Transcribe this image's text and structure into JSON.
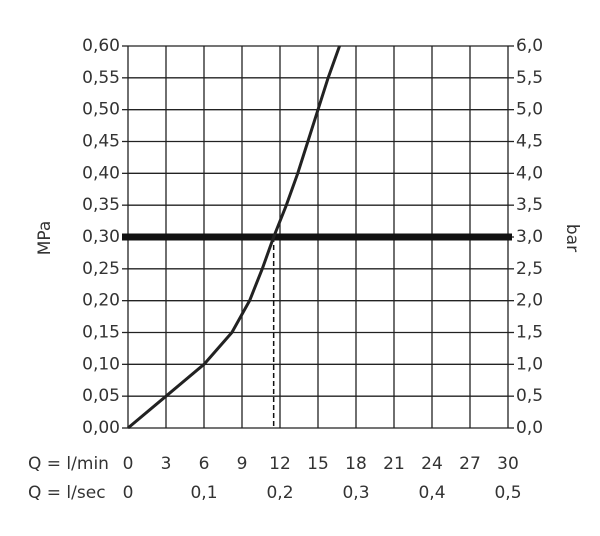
{
  "chart_data": {
    "type": "line",
    "ylabel": "MPa",
    "y2label": "bar",
    "xlabel": "Q = l/min",
    "x2label": "Q = l/sec",
    "x": [
      0,
      3,
      6,
      8.2,
      9.6,
      10.6,
      11.5,
      12.5,
      13.4,
      14.2,
      15.0,
      15.8,
      16.7
    ],
    "values": [
      0,
      0.05,
      0.1,
      0.15,
      0.2,
      0.25,
      0.3,
      0.35,
      0.4,
      0.45,
      0.5,
      0.55,
      0.6
    ],
    "color": "#222222",
    "reference_y": 0.3,
    "reference_x": 11.5,
    "xlim": [
      0,
      30
    ],
    "xticks": [
      0,
      3,
      6,
      9,
      12,
      15,
      18,
      21,
      24,
      27,
      30
    ],
    "x2lim": [
      0,
      0.5
    ],
    "x2ticks": [
      {
        "value": 0,
        "label": "0"
      },
      {
        "value": 0.1,
        "label": "0,1"
      },
      {
        "value": 0.2,
        "label": "0,2"
      },
      {
        "value": 0.3,
        "label": "0,3"
      },
      {
        "value": 0.4,
        "label": "0,4"
      },
      {
        "value": 0.5,
        "label": "0,5"
      }
    ],
    "ylim": [
      0,
      0.6
    ],
    "yticks": [
      {
        "value": 0,
        "label": "0,00"
      },
      {
        "value": 0.05,
        "label": "0,05"
      },
      {
        "value": 0.1,
        "label": "0,10"
      },
      {
        "value": 0.15,
        "label": "0,15"
      },
      {
        "value": 0.2,
        "label": "0,20"
      },
      {
        "value": 0.25,
        "label": "0,25"
      },
      {
        "value": 0.3,
        "label": "0,30"
      },
      {
        "value": 0.35,
        "label": "0,35"
      },
      {
        "value": 0.4,
        "label": "0,40"
      },
      {
        "value": 0.45,
        "label": "0,45"
      },
      {
        "value": 0.5,
        "label": "0,50"
      },
      {
        "value": 0.55,
        "label": "0,55"
      },
      {
        "value": 0.6,
        "label": "0,60"
      }
    ],
    "y2lim": [
      0,
      6
    ],
    "y2ticks": [
      {
        "value": 0,
        "label": "0,0"
      },
      {
        "value": 0.5,
        "label": "0,5"
      },
      {
        "value": 1,
        "label": "1,0"
      },
      {
        "value": 1.5,
        "label": "1,5"
      },
      {
        "value": 2,
        "label": "2,0"
      },
      {
        "value": 2.5,
        "label": "2,5"
      },
      {
        "value": 3,
        "label": "3,0"
      },
      {
        "value": 3.5,
        "label": "3,5"
      },
      {
        "value": 4,
        "label": "4,0"
      },
      {
        "value": 4.5,
        "label": "4,5"
      },
      {
        "value": 5,
        "label": "5,0"
      },
      {
        "value": 5.5,
        "label": "5,5"
      },
      {
        "value": 6,
        "label": "6,0"
      }
    ],
    "grid": true
  }
}
